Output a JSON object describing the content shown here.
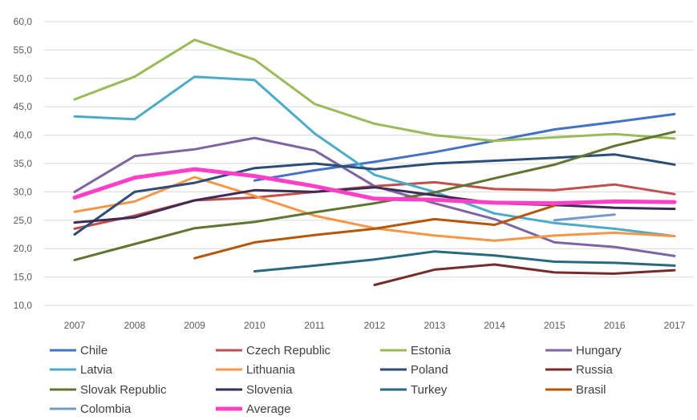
{
  "chart_data": {
    "type": "line",
    "title": "",
    "xlabel": "",
    "ylabel": "",
    "x": [
      "2007",
      "2008",
      "2009",
      "2010",
      "2011",
      "2012",
      "2013",
      "2014",
      "2015",
      "2016",
      "2017"
    ],
    "ylim": [
      10,
      60
    ],
    "yticks": [
      "10,0",
      "15,0",
      "20,0",
      "25,0",
      "30,0",
      "35,0",
      "40,0",
      "45,0",
      "50,0",
      "55,0",
      "60,0"
    ],
    "grid": true,
    "legend_position": "bottom",
    "series": [
      {
        "name": "Chile",
        "color": "#4472c4",
        "values": [
          null,
          null,
          null,
          32.0,
          33.8,
          35.3,
          37.0,
          39.0,
          41.0,
          42.3,
          43.7
        ]
      },
      {
        "name": "Czech Republic",
        "color": "#c0504d",
        "values": [
          23.5,
          25.8,
          28.5,
          29.0,
          30.0,
          31.0,
          31.7,
          30.5,
          30.3,
          31.3,
          29.6
        ]
      },
      {
        "name": "Estonia",
        "color": "#9bbb59",
        "values": [
          46.3,
          50.3,
          56.8,
          53.3,
          45.5,
          42.0,
          40.0,
          39.0,
          39.6,
          40.2,
          39.4
        ]
      },
      {
        "name": "Hungary",
        "color": "#8064a2",
        "values": [
          30.0,
          36.3,
          37.5,
          39.5,
          37.3,
          31.0,
          28.0,
          25.2,
          21.1,
          20.3,
          18.7
        ]
      },
      {
        "name": "Latvia",
        "color": "#4bacc6",
        "values": [
          43.3,
          42.8,
          50.3,
          49.7,
          40.3,
          33.0,
          30.0,
          26.2,
          24.5,
          23.5,
          22.2
        ]
      },
      {
        "name": "Lithuania",
        "color": "#f79646",
        "values": [
          26.5,
          28.3,
          32.6,
          29.3,
          25.8,
          23.6,
          22.3,
          21.4,
          22.3,
          22.8,
          22.2
        ]
      },
      {
        "name": "Poland",
        "color": "#2c4d75",
        "values": [
          22.5,
          30.0,
          31.6,
          34.2,
          35.0,
          34.0,
          35.0,
          35.5,
          36.0,
          36.6,
          34.8
        ]
      },
      {
        "name": "Russia",
        "color": "#772c2a",
        "values": [
          null,
          null,
          null,
          null,
          null,
          13.6,
          16.3,
          17.2,
          15.8,
          15.6,
          16.2
        ]
      },
      {
        "name": "Slovak Republic",
        "color": "#5f7530",
        "values": [
          18.0,
          20.8,
          23.6,
          24.7,
          26.4,
          28.0,
          29.9,
          32.4,
          34.8,
          38.1,
          40.6
        ]
      },
      {
        "name": "Slovenia",
        "color": "#3d2b56",
        "values": [
          24.6,
          25.5,
          28.5,
          30.3,
          30.0,
          30.8,
          29.4,
          28.0,
          27.7,
          27.2,
          27.0
        ]
      },
      {
        "name": "Turkey",
        "color": "#276a7c",
        "values": [
          null,
          null,
          null,
          16.0,
          17.0,
          18.1,
          19.5,
          18.8,
          17.7,
          17.5,
          17.0
        ]
      },
      {
        "name": "Brasil",
        "color": "#b65708",
        "values": [
          null,
          null,
          18.3,
          21.1,
          22.4,
          23.5,
          25.2,
          24.2,
          27.6,
          null,
          null
        ]
      },
      {
        "name": "Colombia",
        "color": "#729aca",
        "values": [
          null,
          null,
          null,
          null,
          null,
          null,
          null,
          null,
          25.0,
          26.0,
          null
        ]
      },
      {
        "name": "Average",
        "color": "#ff3fc8",
        "values": [
          29.0,
          32.5,
          34.0,
          32.8,
          31.0,
          28.8,
          28.6,
          28.1,
          28.0,
          28.3,
          28.2
        ]
      }
    ]
  }
}
